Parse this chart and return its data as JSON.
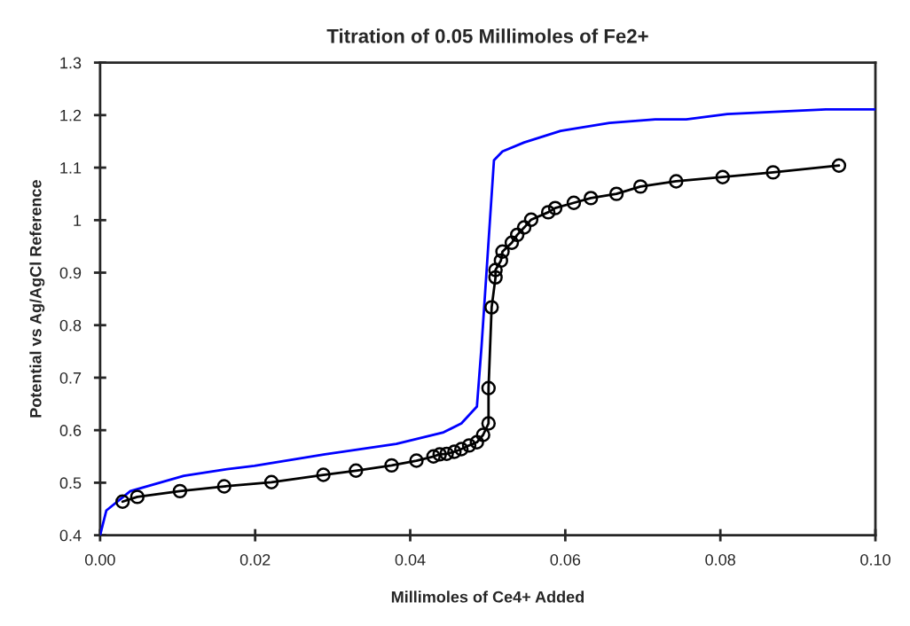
{
  "chart_data": {
    "type": "line",
    "title": "Titration of 0.05 Millimoles of Fe2+",
    "xlabel": "Millimoles of Ce4+ Added",
    "ylabel": "Potential vs Ag/AgCl Reference",
    "xlim": [
      0,
      0.1
    ],
    "ylim": [
      0.4,
      1.3
    ],
    "xticks": [
      {
        "value": 0,
        "label": "0.00"
      },
      {
        "value": 0.02,
        "label": "0.02"
      },
      {
        "value": 0.04,
        "label": "0.04"
      },
      {
        "value": 0.06,
        "label": "0.06"
      },
      {
        "value": 0.08,
        "label": "0.08"
      },
      {
        "value": 0.1,
        "label": "0.10"
      }
    ],
    "yticks": [
      0.4,
      0.5,
      0.6,
      0.7,
      0.8,
      0.9,
      {
        "value": 1.0,
        "label": "1"
      },
      1.1,
      1.2,
      1.3
    ],
    "grid": false,
    "series": [
      {
        "color": "#0000ff",
        "marker": "none",
        "x": [
          0.0,
          0.0008,
          0.0039,
          0.0108,
          0.016,
          0.0199,
          0.029,
          0.0382,
          0.0443,
          0.0466,
          0.0486,
          0.0492,
          0.0508,
          0.0519,
          0.0547,
          0.0594,
          0.0657,
          0.0716,
          0.0756,
          0.0809,
          0.0936,
          0.1
        ],
        "values": [
          0.4,
          0.447,
          0.484,
          0.513,
          0.525,
          0.532,
          0.554,
          0.574,
          0.596,
          0.613,
          0.645,
          0.76,
          1.114,
          1.131,
          1.148,
          1.17,
          1.185,
          1.192,
          1.192,
          1.202,
          1.211,
          1.211
        ]
      },
      {
        "color": "#000000",
        "marker": "circle",
        "x": [
          0.0029,
          0.0048,
          0.0103,
          0.016,
          0.0221,
          0.0288,
          0.033,
          0.0376,
          0.0408,
          0.043,
          0.0438,
          0.0447,
          0.0457,
          0.0466,
          0.0476,
          0.0486,
          0.0494,
          0.0501,
          0.0501,
          0.0505,
          0.051,
          0.051,
          0.0517,
          0.0519,
          0.0531,
          0.0538,
          0.0547,
          0.0556,
          0.0578,
          0.0587,
          0.0611,
          0.0633,
          0.0666,
          0.0697,
          0.0743,
          0.0803,
          0.0868,
          0.0953
        ],
        "values": [
          0.464,
          0.473,
          0.484,
          0.493,
          0.501,
          0.515,
          0.523,
          0.533,
          0.542,
          0.55,
          0.554,
          0.555,
          0.559,
          0.564,
          0.571,
          0.577,
          0.591,
          0.613,
          0.68,
          0.834,
          0.891,
          0.905,
          0.923,
          0.94,
          0.957,
          0.972,
          0.986,
          1.001,
          1.015,
          1.023,
          1.033,
          1.042,
          1.05,
          1.064,
          1.074,
          1.082,
          1.091,
          1.104
        ]
      }
    ]
  }
}
